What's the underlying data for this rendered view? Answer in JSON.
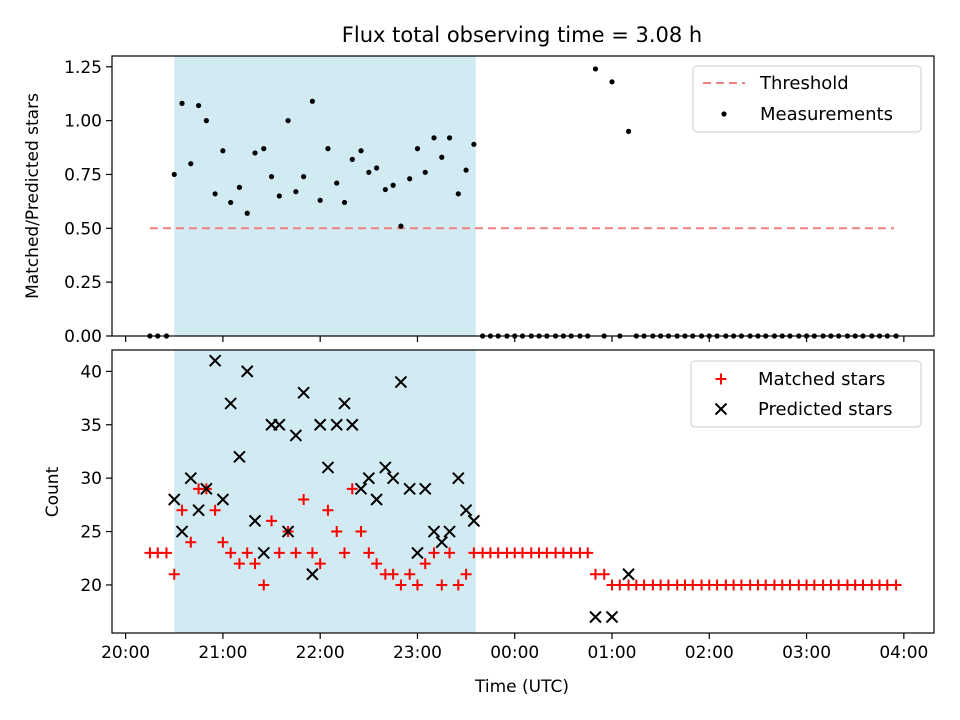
{
  "chart_data": {
    "title": "Flux total observing time = 3.08 h",
    "xlabel": "Time (UTC)",
    "x_ticks": [
      "20:00",
      "21:00",
      "22:00",
      "23:00",
      "00:00",
      "01:00",
      "02:00",
      "03:00",
      "04:00"
    ],
    "x_tick_hours": [
      20,
      21,
      22,
      23,
      24,
      25,
      26,
      27,
      28
    ],
    "x_range_hours": [
      19.86,
      28.31
    ],
    "shaded_interval_hours": [
      20.5,
      23.6
    ],
    "shade_color": "#add8e6",
    "charts": [
      {
        "type": "scatter",
        "ylabel": "Matched/Predicted stars",
        "ylim": [
          0.0,
          1.3
        ],
        "y_ticks": [
          "0.00",
          "0.25",
          "0.50",
          "0.75",
          "1.00",
          "1.25"
        ],
        "y_tick_values": [
          0,
          0.25,
          0.5,
          0.75,
          1.0,
          1.25
        ],
        "legend_position": "top-right",
        "threshold": {
          "name": "Threshold",
          "value": 0.5,
          "x_range_hours": [
            20.25,
            27.9
          ],
          "color": "#f08080",
          "style": "dashed"
        },
        "series": [
          {
            "name": "Measurements",
            "color": "#000000",
            "marker": "dot",
            "points": [
              [
                20.25,
                0
              ],
              [
                20.33,
                0
              ],
              [
                20.42,
                0
              ],
              [
                20.5,
                0.75
              ],
              [
                20.58,
                1.08
              ],
              [
                20.67,
                0.8
              ],
              [
                20.75,
                1.07
              ],
              [
                20.83,
                1.0
              ],
              [
                20.92,
                0.66
              ],
              [
                21.0,
                0.86
              ],
              [
                21.08,
                0.62
              ],
              [
                21.17,
                0.69
              ],
              [
                21.25,
                0.57
              ],
              [
                21.33,
                0.85
              ],
              [
                21.42,
                0.87
              ],
              [
                21.5,
                0.74
              ],
              [
                21.58,
                0.65
              ],
              [
                21.67,
                1.0
              ],
              [
                21.75,
                0.67
              ],
              [
                21.83,
                0.74
              ],
              [
                21.92,
                1.09
              ],
              [
                22.0,
                0.63
              ],
              [
                22.08,
                0.87
              ],
              [
                22.17,
                0.71
              ],
              [
                22.25,
                0.62
              ],
              [
                22.33,
                0.82
              ],
              [
                22.42,
                0.86
              ],
              [
                22.5,
                0.76
              ],
              [
                22.58,
                0.78
              ],
              [
                22.67,
                0.68
              ],
              [
                22.75,
                0.7
              ],
              [
                22.83,
                0.51
              ],
              [
                22.92,
                0.73
              ],
              [
                23.0,
                0.87
              ],
              [
                23.08,
                0.76
              ],
              [
                23.17,
                0.92
              ],
              [
                23.25,
                0.83
              ],
              [
                23.33,
                0.92
              ],
              [
                23.42,
                0.66
              ],
              [
                23.5,
                0.77
              ],
              [
                23.58,
                0.89
              ],
              [
                23.67,
                0
              ],
              [
                23.75,
                0
              ],
              [
                23.83,
                0
              ],
              [
                23.92,
                0
              ],
              [
                24.0,
                0
              ],
              [
                24.08,
                0
              ],
              [
                24.17,
                0
              ],
              [
                24.25,
                0
              ],
              [
                24.33,
                0
              ],
              [
                24.42,
                0
              ],
              [
                24.5,
                0
              ],
              [
                24.58,
                0
              ],
              [
                24.67,
                0
              ],
              [
                24.75,
                0
              ],
              [
                24.83,
                1.24
              ],
              [
                24.92,
                0
              ],
              [
                25.0,
                1.18
              ],
              [
                25.08,
                0
              ],
              [
                25.17,
                0.95
              ],
              [
                25.25,
                0
              ],
              [
                25.33,
                0
              ],
              [
                25.42,
                0
              ],
              [
                25.5,
                0
              ],
              [
                25.58,
                0
              ],
              [
                25.67,
                0
              ],
              [
                25.75,
                0
              ],
              [
                25.83,
                0
              ],
              [
                25.92,
                0
              ],
              [
                26.0,
                0
              ],
              [
                26.08,
                0
              ],
              [
                26.17,
                0
              ],
              [
                26.25,
                0
              ],
              [
                26.33,
                0
              ],
              [
                26.42,
                0
              ],
              [
                26.5,
                0
              ],
              [
                26.58,
                0
              ],
              [
                26.67,
                0
              ],
              [
                26.75,
                0
              ],
              [
                26.83,
                0
              ],
              [
                26.92,
                0
              ],
              [
                27.0,
                0
              ],
              [
                27.08,
                0
              ],
              [
                27.17,
                0
              ],
              [
                27.25,
                0
              ],
              [
                27.33,
                0
              ],
              [
                27.42,
                0
              ],
              [
                27.5,
                0
              ],
              [
                27.58,
                0
              ],
              [
                27.67,
                0
              ],
              [
                27.75,
                0
              ],
              [
                27.83,
                0
              ],
              [
                27.92,
                0
              ]
            ]
          }
        ]
      },
      {
        "type": "scatter",
        "ylabel": "Count",
        "ylim": [
          15.5,
          42.0
        ],
        "y_ticks": [
          "20",
          "25",
          "30",
          "35",
          "40"
        ],
        "y_tick_values": [
          20,
          25,
          30,
          35,
          40
        ],
        "legend_position": "top-right",
        "series": [
          {
            "name": "Matched stars",
            "color": "#ff0000",
            "marker": "plus",
            "points": [
              [
                20.25,
                23
              ],
              [
                20.33,
                23
              ],
              [
                20.42,
                23
              ],
              [
                20.5,
                21
              ],
              [
                20.58,
                27
              ],
              [
                20.67,
                24
              ],
              [
                20.75,
                29
              ],
              [
                20.83,
                29
              ],
              [
                20.92,
                27
              ],
              [
                21.0,
                24
              ],
              [
                21.08,
                23
              ],
              [
                21.17,
                22
              ],
              [
                21.25,
                23
              ],
              [
                21.33,
                22
              ],
              [
                21.42,
                20
              ],
              [
                21.5,
                26
              ],
              [
                21.58,
                23
              ],
              [
                21.67,
                25
              ],
              [
                21.75,
                23
              ],
              [
                21.83,
                28
              ],
              [
                21.92,
                23
              ],
              [
                22.0,
                22
              ],
              [
                22.08,
                27
              ],
              [
                22.17,
                25
              ],
              [
                22.25,
                23
              ],
              [
                22.33,
                29
              ],
              [
                22.42,
                25
              ],
              [
                22.5,
                23
              ],
              [
                22.58,
                22
              ],
              [
                22.67,
                21
              ],
              [
                22.75,
                21
              ],
              [
                22.83,
                20
              ],
              [
                22.92,
                21
              ],
              [
                23.0,
                20
              ],
              [
                23.08,
                22
              ],
              [
                23.17,
                23
              ],
              [
                23.25,
                20
              ],
              [
                23.33,
                23
              ],
              [
                23.42,
                20
              ],
              [
                23.5,
                21
              ],
              [
                23.58,
                23
              ],
              [
                23.67,
                23
              ],
              [
                23.75,
                23
              ],
              [
                23.83,
                23
              ],
              [
                23.92,
                23
              ],
              [
                24.0,
                23
              ],
              [
                24.08,
                23
              ],
              [
                24.17,
                23
              ],
              [
                24.25,
                23
              ],
              [
                24.33,
                23
              ],
              [
                24.42,
                23
              ],
              [
                24.5,
                23
              ],
              [
                24.58,
                23
              ],
              [
                24.67,
                23
              ],
              [
                24.75,
                23
              ],
              [
                24.83,
                21
              ],
              [
                24.92,
                21
              ],
              [
                25.0,
                20
              ],
              [
                25.08,
                20
              ],
              [
                25.17,
                20
              ],
              [
                25.25,
                20
              ],
              [
                25.33,
                20
              ],
              [
                25.42,
                20
              ],
              [
                25.5,
                20
              ],
              [
                25.58,
                20
              ],
              [
                25.67,
                20
              ],
              [
                25.75,
                20
              ],
              [
                25.83,
                20
              ],
              [
                25.92,
                20
              ],
              [
                26.0,
                20
              ],
              [
                26.08,
                20
              ],
              [
                26.17,
                20
              ],
              [
                26.25,
                20
              ],
              [
                26.33,
                20
              ],
              [
                26.42,
                20
              ],
              [
                26.5,
                20
              ],
              [
                26.58,
                20
              ],
              [
                26.67,
                20
              ],
              [
                26.75,
                20
              ],
              [
                26.83,
                20
              ],
              [
                26.92,
                20
              ],
              [
                27.0,
                20
              ],
              [
                27.08,
                20
              ],
              [
                27.17,
                20
              ],
              [
                27.25,
                20
              ],
              [
                27.33,
                20
              ],
              [
                27.42,
                20
              ],
              [
                27.5,
                20
              ],
              [
                27.58,
                20
              ],
              [
                27.67,
                20
              ],
              [
                27.75,
                20
              ],
              [
                27.83,
                20
              ],
              [
                27.92,
                20
              ]
            ]
          },
          {
            "name": "Predicted stars",
            "color": "#000000",
            "marker": "x",
            "points": [
              [
                20.5,
                28
              ],
              [
                20.58,
                25
              ],
              [
                20.67,
                30
              ],
              [
                20.75,
                27
              ],
              [
                20.83,
                29
              ],
              [
                20.92,
                41
              ],
              [
                21.0,
                28
              ],
              [
                21.08,
                37
              ],
              [
                21.17,
                32
              ],
              [
                21.25,
                40
              ],
              [
                21.33,
                26
              ],
              [
                21.42,
                23
              ],
              [
                21.5,
                35
              ],
              [
                21.58,
                35
              ],
              [
                21.67,
                25
              ],
              [
                21.75,
                34
              ],
              [
                21.83,
                38
              ],
              [
                21.92,
                21
              ],
              [
                22.0,
                35
              ],
              [
                22.08,
                31
              ],
              [
                22.17,
                35
              ],
              [
                22.25,
                37
              ],
              [
                22.33,
                35
              ],
              [
                22.42,
                29
              ],
              [
                22.5,
                30
              ],
              [
                22.58,
                28
              ],
              [
                22.67,
                31
              ],
              [
                22.75,
                30
              ],
              [
                22.83,
                39
              ],
              [
                22.92,
                29
              ],
              [
                23.0,
                23
              ],
              [
                23.08,
                29
              ],
              [
                23.17,
                25
              ],
              [
                23.25,
                24
              ],
              [
                23.33,
                25
              ],
              [
                23.42,
                30
              ],
              [
                23.5,
                27
              ],
              [
                23.58,
                26
              ],
              [
                24.83,
                17
              ],
              [
                25.0,
                17
              ],
              [
                25.17,
                21
              ]
            ]
          }
        ]
      }
    ]
  }
}
